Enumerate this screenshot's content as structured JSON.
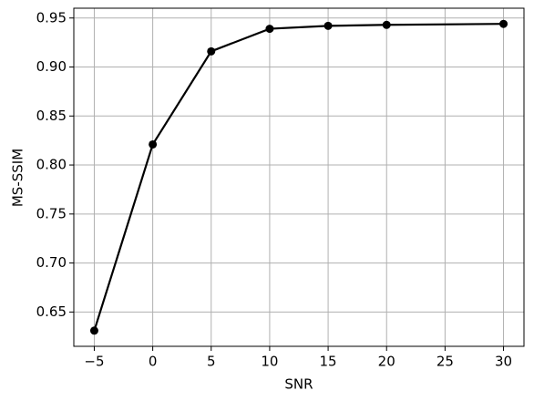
{
  "chart_data": {
    "type": "line",
    "x_label": "SNR",
    "y_label": "MS-SSIM",
    "x": [
      -5,
      0,
      5,
      10,
      15,
      20,
      30
    ],
    "series": [
      {
        "color": "#000000",
        "values": [
          0.631,
          0.821,
          0.916,
          0.939,
          0.942,
          0.943,
          0.944
        ]
      }
    ],
    "xlim": [
      -6.75,
      31.75
    ],
    "xticks": [
      {
        "value": -5,
        "label": "−5"
      },
      0,
      5,
      10,
      15,
      20,
      25,
      30
    ],
    "ylim": [
      0.615,
      0.96
    ],
    "yticks": [
      0.65,
      {
        "value": 0.7,
        "label": "0.70"
      },
      0.75,
      {
        "value": 0.8,
        "label": "0.80"
      },
      0.85,
      {
        "value": 0.9,
        "label": "0.90"
      },
      0.95
    ],
    "grid": true,
    "markers": true
  }
}
